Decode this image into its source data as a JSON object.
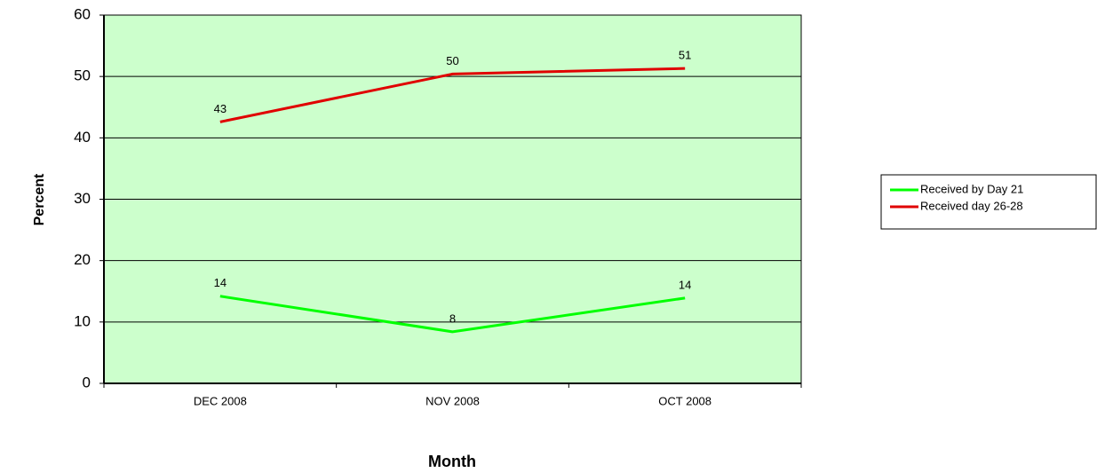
{
  "chart_data": {
    "type": "line",
    "categories": [
      "DEC 2008",
      "NOV 2008",
      "OCT 2008"
    ],
    "series": [
      {
        "name": "Received by Day 21",
        "color": "#00ff00",
        "values": [
          14.2,
          8.4,
          13.9
        ],
        "value_labels": [
          "14",
          "8",
          "14"
        ]
      },
      {
        "name": "Received day 26-28",
        "color": "#e00000",
        "values": [
          42.6,
          50.4,
          51.3
        ],
        "value_labels": [
          "43",
          "50",
          "51"
        ]
      }
    ],
    "ylim": [
      0,
      60
    ],
    "yticks": [
      0,
      10,
      20,
      30,
      40,
      50,
      60
    ],
    "grid": true,
    "xlabel": "Month",
    "ylabel": "Percent",
    "legend": "right",
    "plot_background": "#ccffcc"
  }
}
